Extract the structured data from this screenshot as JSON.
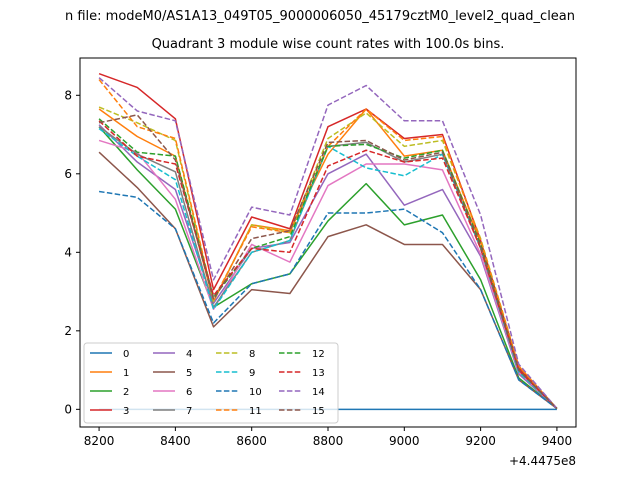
{
  "chart_data": {
    "type": "line",
    "suptitle": "n file: modeM0/AS1A13_049T05_9000006050_45179cztM0_level2_quad_clean",
    "title": "Quadrant 3 module wise count rates with 100.0s bins.",
    "xlabel": "",
    "ylabel": "",
    "x_offset_label": "+4.4475e8",
    "x": [
      8200,
      8300,
      8400,
      8500,
      8600,
      8700,
      8800,
      8900,
      9000,
      9100,
      9200,
      9300,
      9400
    ],
    "xlim": [
      8150,
      9450
    ],
    "ylim": [
      -0.45,
      8.95
    ],
    "xticks": [
      8200,
      8400,
      8600,
      8800,
      9000,
      9200,
      9400
    ],
    "yticks": [
      0,
      2,
      4,
      6,
      8
    ],
    "grid": false,
    "legend_location": "lower-left",
    "legend_columns": 4,
    "series": [
      {
        "name": "0",
        "color": "#1f77b4",
        "dash": "solid",
        "values": [
          0,
          0,
          0,
          0,
          0,
          0,
          0,
          0,
          0,
          0,
          0,
          0,
          0
        ]
      },
      {
        "name": "1",
        "color": "#ff7f0e",
        "dash": "solid",
        "values": [
          7.65,
          6.95,
          6.45,
          2.75,
          4.7,
          4.55,
          6.5,
          7.65,
          6.45,
          6.6,
          4.25,
          1.1,
          0.02
        ]
      },
      {
        "name": "2",
        "color": "#2ca02c",
        "dash": "solid",
        "values": [
          7.2,
          6.1,
          5.1,
          2.6,
          3.2,
          3.45,
          4.8,
          5.75,
          4.7,
          4.95,
          3.3,
          0.8,
          0.02
        ]
      },
      {
        "name": "3",
        "color": "#d62728",
        "dash": "solid",
        "values": [
          8.55,
          8.2,
          7.4,
          3.05,
          4.9,
          4.6,
          7.2,
          7.65,
          6.9,
          7.0,
          4.3,
          1.05,
          0.02
        ]
      },
      {
        "name": "4",
        "color": "#9467bd",
        "dash": "solid",
        "values": [
          7.25,
          6.3,
          5.6,
          2.7,
          4.1,
          4.25,
          6.0,
          6.5,
          5.2,
          5.6,
          3.9,
          0.9,
          0.02
        ]
      },
      {
        "name": "5",
        "color": "#8c564b",
        "dash": "solid",
        "values": [
          6.55,
          5.65,
          4.6,
          2.1,
          3.05,
          2.95,
          4.4,
          4.7,
          4.2,
          4.2,
          3.05,
          0.75,
          0.02
        ]
      },
      {
        "name": "6",
        "color": "#e377c2",
        "dash": "solid",
        "values": [
          6.85,
          6.55,
          5.35,
          2.55,
          4.2,
          3.75,
          5.7,
          6.25,
          6.25,
          6.1,
          3.95,
          0.95,
          0.02
        ]
      },
      {
        "name": "7",
        "color": "#7f7f7f",
        "dash": "solid",
        "values": [
          7.2,
          6.5,
          6.05,
          2.6,
          4.0,
          4.3,
          6.7,
          6.8,
          6.3,
          6.5,
          4.1,
          1.0,
          0.02
        ]
      },
      {
        "name": "8",
        "color": "#bcbd22",
        "dash": "dashed",
        "values": [
          7.7,
          7.3,
          6.85,
          2.75,
          4.7,
          4.5,
          6.9,
          7.55,
          6.7,
          6.85,
          4.35,
          1.1,
          0.02
        ]
      },
      {
        "name": "9",
        "color": "#17becf",
        "dash": "dashed",
        "values": [
          7.15,
          6.45,
          5.85,
          2.55,
          4.0,
          4.3,
          6.7,
          6.15,
          5.95,
          6.5,
          4.1,
          0.95,
          0.02
        ]
      },
      {
        "name": "10",
        "color": "#1f77b4",
        "dash": "dashed",
        "values": [
          5.55,
          5.4,
          4.6,
          2.2,
          3.2,
          3.45,
          5.0,
          5.0,
          5.1,
          4.5,
          3.05,
          0.75,
          0.02
        ]
      },
      {
        "name": "11",
        "color": "#ff7f0e",
        "dash": "dashed",
        "values": [
          8.4,
          7.2,
          6.9,
          2.8,
          4.65,
          4.5,
          6.7,
          7.65,
          6.85,
          6.95,
          4.3,
          1.1,
          0.02
        ]
      },
      {
        "name": "12",
        "color": "#2ca02c",
        "dash": "dashed",
        "values": [
          7.4,
          6.55,
          6.45,
          2.85,
          4.1,
          4.4,
          6.7,
          6.75,
          6.4,
          6.6,
          4.2,
          1.0,
          0.02
        ]
      },
      {
        "name": "13",
        "color": "#d62728",
        "dash": "dashed",
        "values": [
          7.35,
          6.45,
          6.25,
          2.9,
          4.1,
          4.0,
          6.2,
          6.6,
          6.3,
          6.4,
          4.1,
          1.0,
          0.02
        ]
      },
      {
        "name": "14",
        "color": "#9467bd",
        "dash": "dashed",
        "values": [
          8.45,
          7.6,
          7.35,
          3.3,
          5.15,
          4.95,
          7.75,
          8.25,
          7.35,
          7.35,
          4.95,
          1.15,
          0.02
        ]
      },
      {
        "name": "15",
        "color": "#8c564b",
        "dash": "dashed",
        "values": [
          7.3,
          7.5,
          6.35,
          2.8,
          4.35,
          4.55,
          6.8,
          6.85,
          6.35,
          6.55,
          4.15,
          1.0,
          0.02
        ]
      }
    ]
  }
}
